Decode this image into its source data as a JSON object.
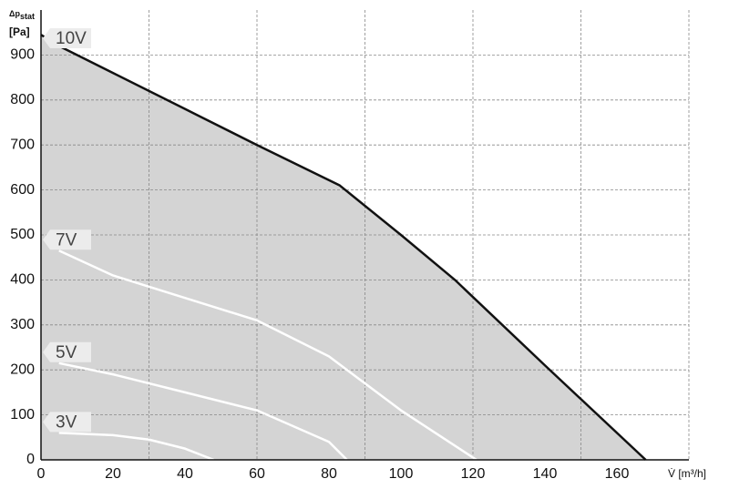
{
  "chart_data": {
    "type": "line",
    "y_label": "Δp",
    "y_label_sub": "stat",
    "y_unit": "[Pa]",
    "x_label": "V̇ [m³/h]",
    "xlim": [
      0,
      180
    ],
    "xticks": [
      0,
      20,
      40,
      60,
      80,
      100,
      120,
      140,
      160
    ],
    "xgrid": [
      30,
      60,
      90,
      120,
      150,
      180
    ],
    "ylim": [
      0,
      1000
    ],
    "yticks": [
      0,
      100,
      200,
      300,
      400,
      500,
      600,
      700,
      800,
      900
    ],
    "grid": true,
    "area_fill": "#d4d4d4",
    "series": [
      {
        "name": "10V",
        "color": "#111111",
        "x": [
          0,
          5,
          20,
          40,
          60,
          83,
          100,
          115,
          140,
          168
        ],
        "values": [
          945,
          920,
          860,
          780,
          700,
          610,
          500,
          400,
          210,
          0
        ]
      },
      {
        "name": "7V",
        "color": "#ffffff",
        "x": [
          5,
          20,
          40,
          60,
          80,
          100,
          121
        ],
        "values": [
          465,
          410,
          360,
          310,
          230,
          110,
          0
        ]
      },
      {
        "name": "5V",
        "color": "#ffffff",
        "x": [
          5,
          20,
          40,
          60,
          80,
          85
        ],
        "values": [
          215,
          190,
          150,
          110,
          40,
          0
        ]
      },
      {
        "name": "3V",
        "color": "#ffffff",
        "x": [
          5,
          20,
          30,
          40,
          48
        ],
        "values": [
          60,
          55,
          45,
          25,
          0
        ]
      }
    ]
  }
}
